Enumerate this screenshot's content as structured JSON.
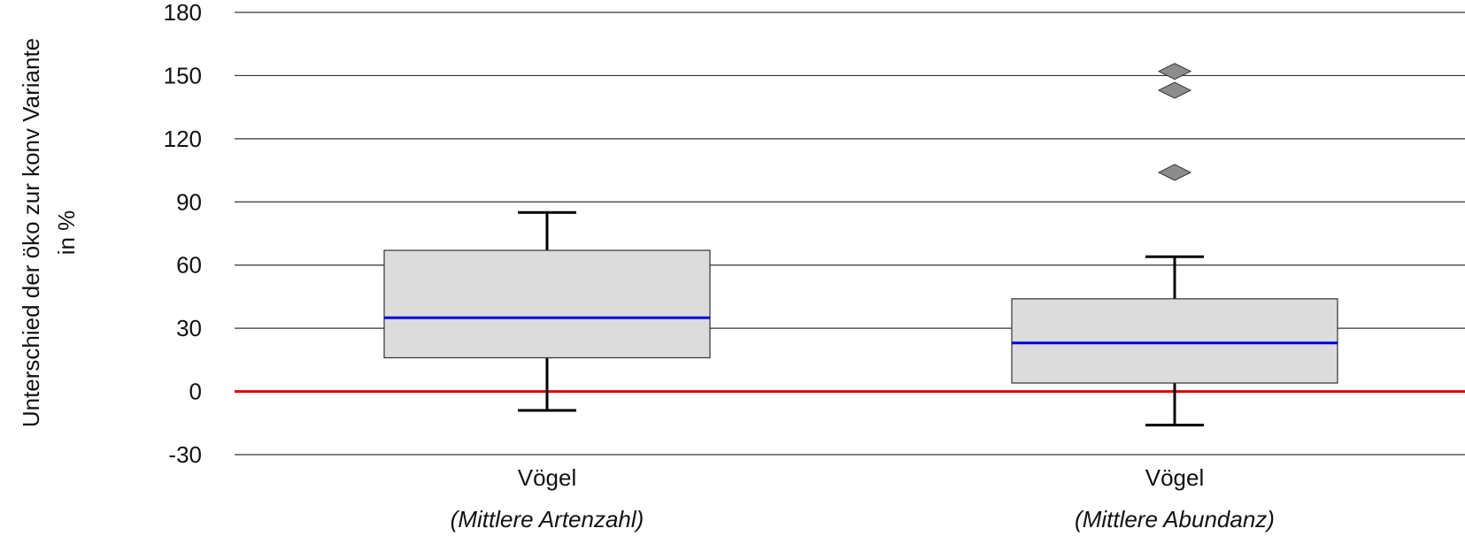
{
  "chart_data": {
    "type": "box",
    "ylabel_line1": "Unterschied der öko zur konv Variante",
    "ylabel_line2": "in %",
    "ylim": [
      -30,
      180
    ],
    "yticks": [
      -30,
      0,
      30,
      60,
      90,
      120,
      150,
      180
    ],
    "grid": true,
    "reference_line": 0,
    "categories": [
      {
        "label": "Vögel",
        "sublabel": "(Mittlere Artenzahl)"
      },
      {
        "label": "Vögel",
        "sublabel": "(Mittlere Abundanz)"
      }
    ],
    "series": [
      {
        "values": [
          {
            "whisker_low": -9,
            "q1": 16,
            "median": 35,
            "q3": 67,
            "whisker_high": 85,
            "outliers": []
          },
          {
            "whisker_low": -16,
            "q1": 4,
            "median": 23,
            "q3": 44,
            "whisker_high": 64,
            "outliers": [
              152,
              143,
              104
            ]
          }
        ]
      }
    ],
    "colors": {
      "box_fill": "#dcdcdc",
      "box_stroke": "#333333",
      "median": "#0000dd",
      "reference": "#dd0000",
      "grid": "#333333",
      "outlier_fill": "#8c8c8c"
    }
  }
}
